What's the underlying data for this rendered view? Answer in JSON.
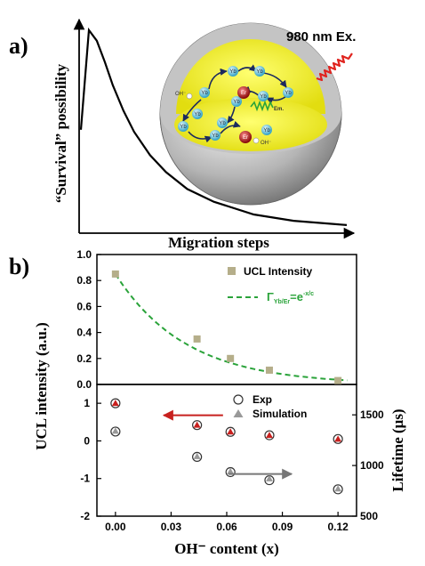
{
  "panel_a": {
    "label": "a)",
    "ylabel": "“Survival” possibility",
    "xlabel": "Migration steps",
    "excitation_label": "980 nm Ex.",
    "em_label": "Em.",
    "ion_labels": {
      "yb": "Yb",
      "er": "Er",
      "oh": "OH⁻"
    }
  },
  "panel_b": {
    "label": "b)",
    "legend_top": {
      "intensity": "UCL Intensity",
      "fit_main": "Γ",
      "fit_sub": "Yb/Er",
      "fit_rest": "=e",
      "fit_sup": "-x/c"
    },
    "legend_bottom": {
      "exp": "Exp",
      "sim": "Simulation"
    }
  },
  "chart_data": [
    {
      "type": "line",
      "id": "a",
      "xlabel": "Migration steps",
      "ylabel": "“Survival” possibility",
      "x": [
        0,
        0.3,
        0.6,
        0.9,
        1.2,
        1.6,
        2.0,
        2.6,
        3.2,
        4.0,
        5.0,
        6.5,
        8.0,
        10.0
      ],
      "values": [
        0.48,
        0.95,
        0.9,
        0.8,
        0.69,
        0.57,
        0.47,
        0.36,
        0.28,
        0.2,
        0.14,
        0.08,
        0.05,
        0.03
      ],
      "xlim": [
        0,
        10
      ],
      "ylim": [
        0,
        1
      ]
    },
    {
      "type": "scatter",
      "id": "b-top",
      "ylabel": "UCL intensity (a.u.)",
      "xlim": [
        -0.01,
        0.13
      ],
      "ylim": [
        0,
        1.0
      ],
      "yticks": [
        "0.0",
        "0.2",
        "0.4",
        "0.6",
        "0.8",
        "1.0"
      ],
      "series": [
        {
          "name": "UCL Intensity",
          "x": [
            0,
            0.044,
            0.062,
            0.083,
            0.12
          ],
          "values": [
            0.85,
            0.35,
            0.2,
            0.11,
            0.03
          ],
          "color": "#b5ae8a"
        }
      ],
      "fit": {
        "name": "Γ Yb/Er = e^-x/c",
        "c": 0.038,
        "x_from": 0,
        "x_to": 0.125,
        "color": "#2aa33a"
      }
    },
    {
      "type": "scatter",
      "id": "b-bottom",
      "xlabel": "OH⁻ content (x)",
      "ylabel": "Lifetime (μs)",
      "xlim": [
        -0.01,
        0.13
      ],
      "xticks": [
        "0.00",
        "0.03",
        "0.06",
        "0.09",
        "0.12"
      ],
      "left_ylim": [
        -2,
        1.5
      ],
      "left_yticks": [
        "1",
        "0",
        "-1",
        "-2"
      ],
      "right_ylim": [
        500,
        1800
      ],
      "right_yticks": [
        "1500",
        "1000",
        "500"
      ],
      "series": [
        {
          "name": "Exp",
          "axis": "right",
          "x": [
            0,
            0.044,
            0.062,
            0.083,
            0.12
          ],
          "values": [
            1335,
            1085,
            935,
            855,
            765
          ]
        },
        {
          "name": "Simulation",
          "axis": "right",
          "x": [
            0,
            0.044,
            0.062,
            0.083,
            0.12
          ],
          "values": [
            1340,
            1090,
            940,
            870,
            770
          ]
        },
        {
          "name": "left-axis red",
          "axis": "left",
          "x": [
            0,
            0.044,
            0.062,
            0.083,
            0.12
          ],
          "values": [
            1.0,
            0.42,
            0.24,
            0.15,
            0.05
          ],
          "color": "#c8201e"
        }
      ],
      "arrows": {
        "left_color": "#c8201e",
        "right_color": "#777777"
      }
    }
  ]
}
